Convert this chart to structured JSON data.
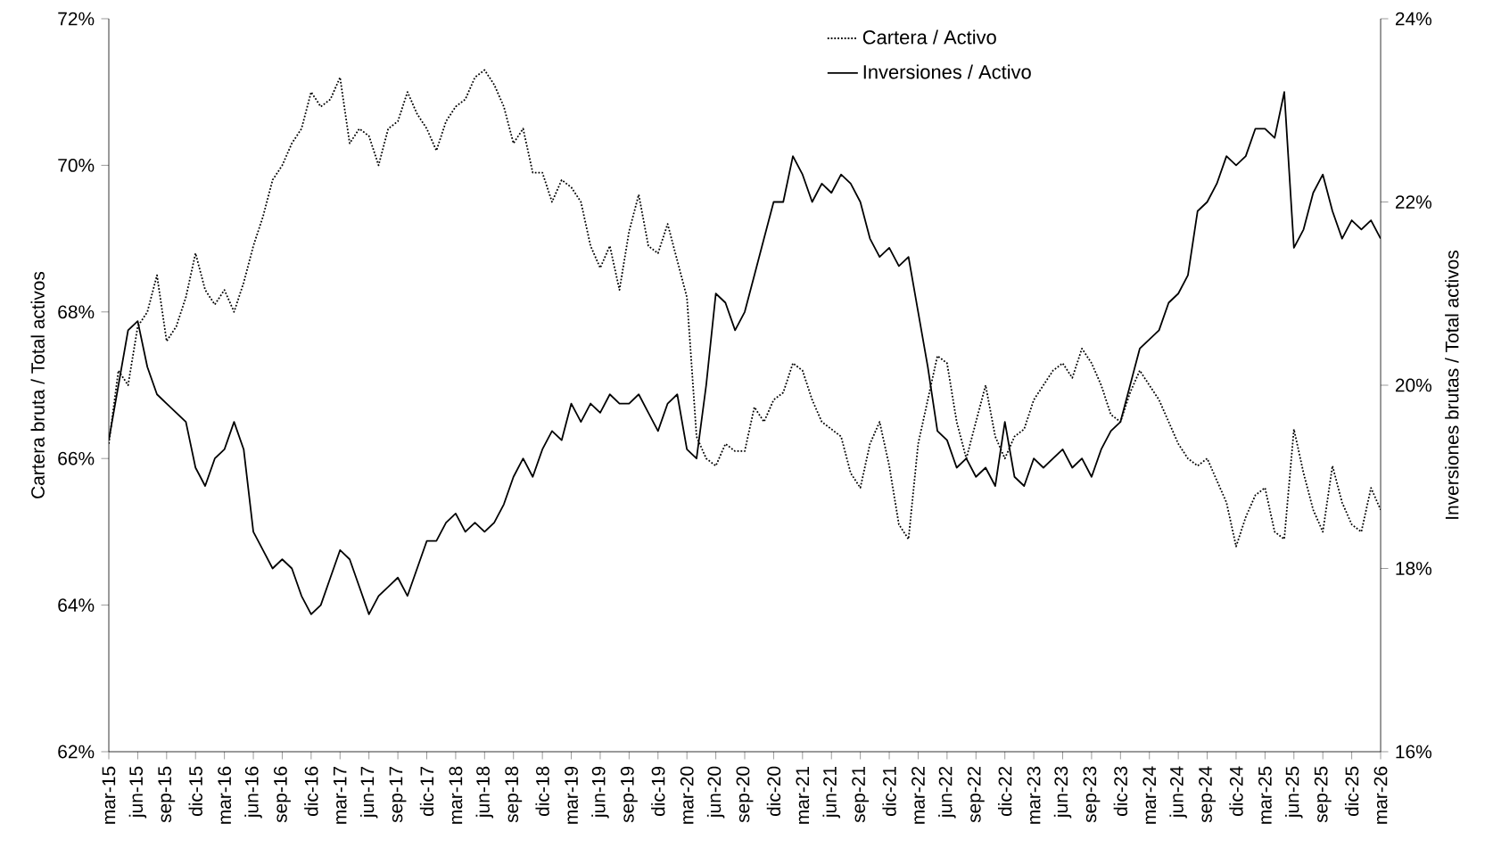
{
  "chart_data": {
    "type": "line",
    "xlabel": null,
    "ylabel": "Cartera bruta / Total activos",
    "y2label": "Inversiones brutas / Total activos",
    "x": [
      "2015-03",
      "2015-04",
      "2015-05",
      "2015-06",
      "2015-07",
      "2015-08",
      "2015-09",
      "2015-10",
      "2015-11",
      "2015-12",
      "2016-01",
      "2016-02",
      "2016-03",
      "2016-04",
      "2016-05",
      "2016-06",
      "2016-07",
      "2016-08",
      "2016-09",
      "2016-10",
      "2016-11",
      "2016-12",
      "2017-01",
      "2017-02",
      "2017-03",
      "2017-04",
      "2017-05",
      "2017-06",
      "2017-07",
      "2017-08",
      "2017-09",
      "2017-10",
      "2017-11",
      "2017-12",
      "2018-01",
      "2018-02",
      "2018-03",
      "2018-04",
      "2018-05",
      "2018-06",
      "2018-07",
      "2018-08",
      "2018-09",
      "2018-10",
      "2018-11",
      "2018-12",
      "2019-01",
      "2019-02",
      "2019-03",
      "2019-04",
      "2019-05",
      "2019-06",
      "2019-07",
      "2019-08",
      "2019-09",
      "2019-10",
      "2019-11",
      "2019-12",
      "2020-01",
      "2020-02",
      "2020-03",
      "2020-04",
      "2020-05",
      "2020-06",
      "2020-07",
      "2020-08",
      "2020-09",
      "2020-10",
      "2020-11",
      "2020-12",
      "2021-01",
      "2021-02",
      "2021-03",
      "2021-04",
      "2021-05",
      "2021-06",
      "2021-07",
      "2021-08",
      "2021-09",
      "2021-10",
      "2021-11",
      "2021-12",
      "2022-01",
      "2022-02",
      "2022-03",
      "2022-04",
      "2022-05",
      "2022-06",
      "2022-07",
      "2022-08",
      "2022-09",
      "2022-10",
      "2022-11",
      "2022-12",
      "2023-01",
      "2023-02",
      "2023-03",
      "2023-04",
      "2023-05",
      "2023-06",
      "2023-07",
      "2023-08",
      "2023-09",
      "2023-10",
      "2023-11",
      "2023-12",
      "2024-01",
      "2024-02",
      "2024-03",
      "2024-04",
      "2024-05",
      "2024-06",
      "2024-07",
      "2024-08",
      "2024-09",
      "2024-10",
      "2024-11",
      "2024-12",
      "2025-01",
      "2025-02",
      "2025-03",
      "2025-04",
      "2025-05",
      "2025-06",
      "2025-07",
      "2025-08",
      "2025-09",
      "2025-10",
      "2025-11",
      "2025-12",
      "2026-01",
      "2026-02",
      "2026-03"
    ],
    "series": [
      {
        "name": "Cartera / Activo",
        "color": "#000000",
        "line_style": "dotted",
        "axis": "y",
        "values": [
          66.2,
          67.2,
          67.0,
          67.8,
          68.0,
          68.5,
          67.6,
          67.8,
          68.2,
          68.8,
          68.3,
          68.1,
          68.3,
          68.0,
          68.4,
          68.9,
          69.3,
          69.8,
          70.0,
          70.3,
          70.5,
          71.0,
          70.8,
          70.9,
          71.2,
          70.3,
          70.5,
          70.4,
          70.0,
          70.5,
          70.6,
          71.0,
          70.7,
          70.5,
          70.2,
          70.6,
          70.8,
          70.9,
          71.2,
          71.3,
          71.1,
          70.8,
          70.3,
          70.5,
          69.9,
          69.9,
          69.5,
          69.8,
          69.7,
          69.5,
          68.9,
          68.6,
          68.9,
          68.3,
          69.1,
          69.6,
          68.9,
          68.8,
          69.2,
          68.7,
          68.2,
          66.3,
          66.0,
          65.9,
          66.2,
          66.1,
          66.1,
          66.7,
          66.5,
          66.8,
          66.9,
          67.3,
          67.2,
          66.8,
          66.5,
          66.4,
          66.3,
          65.8,
          65.6,
          66.2,
          66.5,
          65.9,
          65.1,
          64.9,
          66.2,
          66.8,
          67.4,
          67.3,
          66.5,
          66.0,
          66.5,
          67.0,
          66.3,
          66.0,
          66.3,
          66.4,
          66.8,
          67.0,
          67.2,
          67.3,
          67.1,
          67.5,
          67.3,
          67.0,
          66.6,
          66.5,
          66.9,
          67.2,
          67.0,
          66.8,
          66.5,
          66.2,
          66.0,
          65.9,
          66.0,
          65.7,
          65.4,
          64.8,
          65.2,
          65.5,
          65.6,
          65.0,
          64.9,
          66.4,
          65.8,
          65.3,
          65.0,
          65.9,
          65.4,
          65.1,
          65.0,
          65.6,
          65.3
        ]
      },
      {
        "name": "Inversiones / Activo",
        "color": "#000000",
        "line_style": "solid",
        "axis": "y2",
        "values": [
          19.4,
          20.0,
          20.6,
          20.7,
          20.2,
          19.9,
          19.8,
          19.7,
          19.6,
          19.1,
          18.9,
          19.2,
          19.3,
          19.6,
          19.3,
          18.4,
          18.2,
          18.0,
          18.1,
          18.0,
          17.7,
          17.5,
          17.6,
          17.9,
          18.2,
          18.1,
          17.8,
          17.5,
          17.7,
          17.8,
          17.9,
          17.7,
          18.0,
          18.3,
          18.3,
          18.5,
          18.6,
          18.4,
          18.5,
          18.4,
          18.5,
          18.7,
          19.0,
          19.2,
          19.0,
          19.3,
          19.5,
          19.4,
          19.8,
          19.6,
          19.8,
          19.7,
          19.9,
          19.8,
          19.8,
          19.9,
          19.7,
          19.5,
          19.8,
          19.9,
          19.3,
          19.2,
          20.0,
          21.0,
          20.9,
          20.6,
          20.8,
          21.2,
          21.6,
          22.0,
          22.0,
          22.5,
          22.3,
          22.0,
          22.2,
          22.1,
          22.3,
          22.2,
          22.0,
          21.6,
          21.4,
          21.5,
          21.3,
          21.4,
          20.8,
          20.2,
          19.5,
          19.4,
          19.1,
          19.2,
          19.0,
          19.1,
          18.9,
          19.6,
          19.0,
          18.9,
          19.2,
          19.1,
          19.2,
          19.3,
          19.1,
          19.2,
          19.0,
          19.3,
          19.5,
          19.6,
          20.0,
          20.4,
          20.5,
          20.6,
          20.9,
          21.0,
          21.2,
          21.9,
          22.0,
          22.2,
          22.5,
          22.4,
          22.5,
          22.8,
          22.8,
          22.7,
          23.2,
          21.5,
          21.7,
          22.1,
          22.3,
          21.9,
          21.6,
          21.8,
          21.7,
          21.8,
          21.6
        ]
      }
    ],
    "xlim": [
      "2015-03",
      "2026-03"
    ],
    "xticks": [
      {
        "value": "2015-03",
        "label": "mar-15"
      },
      {
        "value": "2015-06",
        "label": "jun-15"
      },
      {
        "value": "2015-09",
        "label": "sep-15"
      },
      {
        "value": "2015-12",
        "label": "dic-15"
      },
      {
        "value": "2016-03",
        "label": "mar-16"
      },
      {
        "value": "2016-06",
        "label": "jun-16"
      },
      {
        "value": "2016-09",
        "label": "sep-16"
      },
      {
        "value": "2016-12",
        "label": "dic-16"
      },
      {
        "value": "2017-03",
        "label": "mar-17"
      },
      {
        "value": "2017-06",
        "label": "jun-17"
      },
      {
        "value": "2017-09",
        "label": "sep-17"
      },
      {
        "value": "2017-12",
        "label": "dic-17"
      },
      {
        "value": "2018-03",
        "label": "mar-18"
      },
      {
        "value": "2018-06",
        "label": "jun-18"
      },
      {
        "value": "2018-09",
        "label": "sep-18"
      },
      {
        "value": "2018-12",
        "label": "dic-18"
      },
      {
        "value": "2019-03",
        "label": "mar-19"
      },
      {
        "value": "2019-06",
        "label": "jun-19"
      },
      {
        "value": "2019-09",
        "label": "sep-19"
      },
      {
        "value": "2019-12",
        "label": "dic-19"
      },
      {
        "value": "2020-03",
        "label": "mar-20"
      },
      {
        "value": "2020-06",
        "label": "jun-20"
      },
      {
        "value": "2020-09",
        "label": "sep-20"
      },
      {
        "value": "2020-12",
        "label": "dic-20"
      },
      {
        "value": "2021-03",
        "label": "mar-21"
      },
      {
        "value": "2021-06",
        "label": "jun-21"
      },
      {
        "value": "2021-09",
        "label": "sep-21"
      },
      {
        "value": "2021-12",
        "label": "dic-21"
      },
      {
        "value": "2022-03",
        "label": "mar-22"
      },
      {
        "value": "2022-06",
        "label": "jun-22"
      },
      {
        "value": "2022-09",
        "label": "sep-22"
      },
      {
        "value": "2022-12",
        "label": "dic-22"
      },
      {
        "value": "2023-03",
        "label": "mar-23"
      },
      {
        "value": "2023-06",
        "label": "jun-23"
      },
      {
        "value": "2023-09",
        "label": "sep-23"
      },
      {
        "value": "2023-12",
        "label": "dic-23"
      },
      {
        "value": "2024-03",
        "label": "mar-24"
      },
      {
        "value": "2024-06",
        "label": "jun-24"
      },
      {
        "value": "2024-09",
        "label": "sep-24"
      },
      {
        "value": "2024-12",
        "label": "dic-24"
      },
      {
        "value": "2025-03",
        "label": "mar-25"
      },
      {
        "value": "2025-06",
        "label": "jun-25"
      },
      {
        "value": "2025-09",
        "label": "sep-25"
      },
      {
        "value": "2025-12",
        "label": "dic-25"
      },
      {
        "value": "2026-03",
        "label": "mar-26"
      }
    ],
    "ylim": [
      62,
      72
    ],
    "yticks": [
      {
        "value": 62,
        "label": "62%"
      },
      {
        "value": 64,
        "label": "64%"
      },
      {
        "value": 66,
        "label": "66%"
      },
      {
        "value": 68,
        "label": "68%"
      },
      {
        "value": 70,
        "label": "70%"
      },
      {
        "value": 72,
        "label": "72%"
      }
    ],
    "y2lim": [
      16,
      24
    ],
    "y2ticks": [
      {
        "value": 16,
        "label": "16%"
      },
      {
        "value": 18,
        "label": "18%"
      },
      {
        "value": 20,
        "label": "20%"
      },
      {
        "value": 22,
        "label": "22%"
      },
      {
        "value": 24,
        "label": "24%"
      }
    ],
    "legend": "top",
    "marker": "none"
  }
}
